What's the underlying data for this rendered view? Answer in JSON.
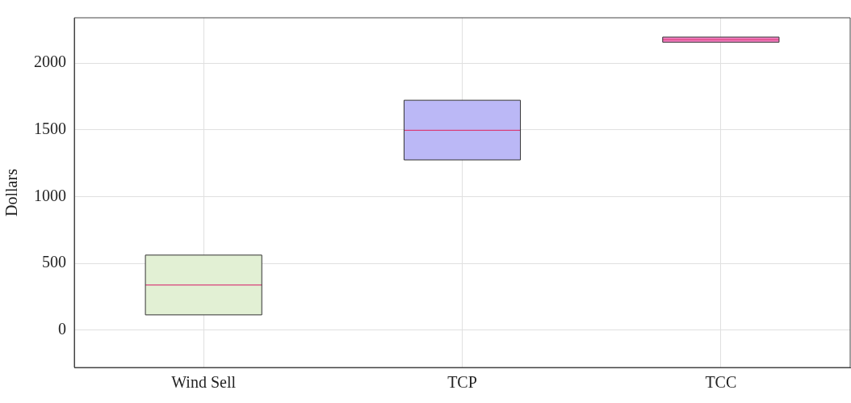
{
  "chart_data": {
    "type": "box",
    "ylabel": "Dollars",
    "categories": [
      "Wind Sell",
      "TCP",
      "TCC"
    ],
    "boxes": [
      {
        "low": 114,
        "q1": 114,
        "median": 338,
        "q3": 562,
        "high": 562
      },
      {
        "low": 1275,
        "q1": 1275,
        "median": 1497,
        "q3": 1722,
        "high": 1722
      },
      {
        "low": 2157,
        "q1": 2157,
        "median": 2176,
        "q3": 2195,
        "high": 2195
      }
    ],
    "colors": [
      "#e2f0d4",
      "#bbb8f6",
      "#f57fc4"
    ],
    "ylim": [
      -280,
      2340
    ],
    "yticks": [
      0,
      500,
      1000,
      1500,
      2000
    ],
    "grid": true,
    "legend": false
  }
}
